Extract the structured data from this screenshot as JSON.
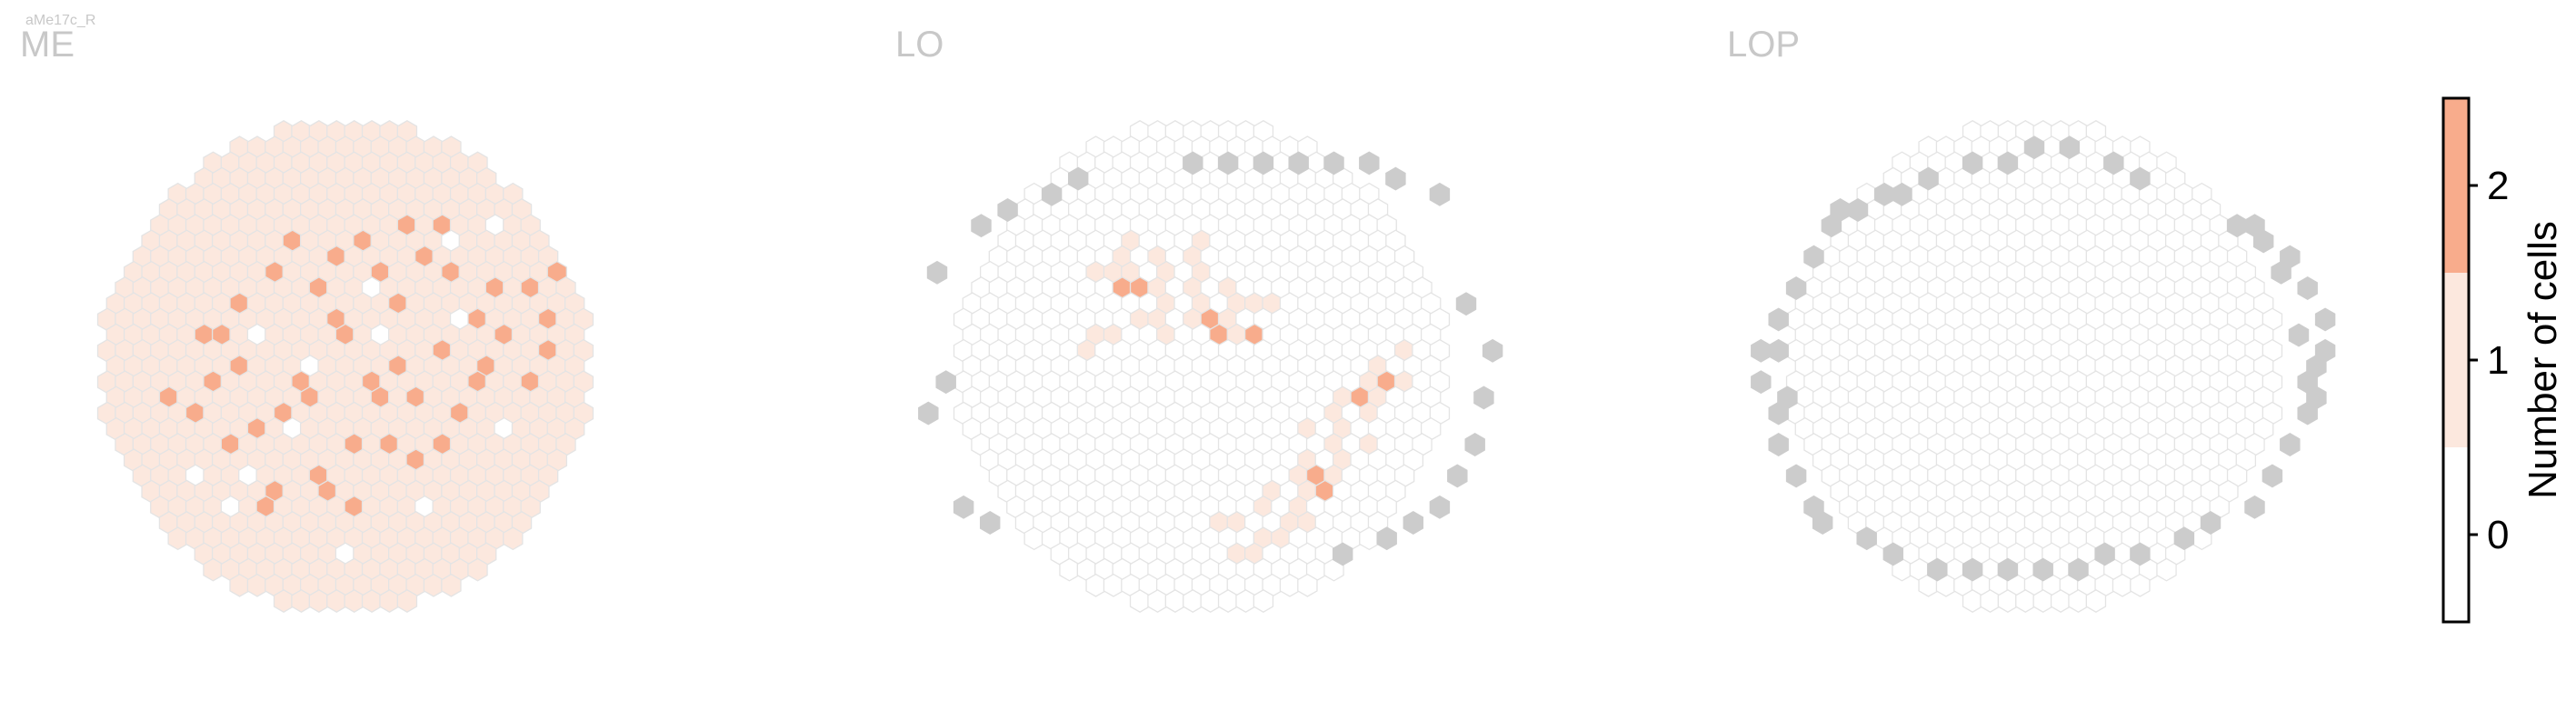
{
  "cell_type_label": "aMe17c_R",
  "colors": {
    "zero": "#ffffff",
    "one": "#fce8de",
    "two": "#f8ac8c",
    "outside": "#cccccc",
    "hex_stroke": "#e4e4e4",
    "title_gray": "#c8c8c8",
    "frame": "#000000"
  },
  "chart_data": {
    "type": "heatmap",
    "description_free": true,
    "panels": [
      {
        "title": "ME",
        "cells_2": [
          [
            -7,
            -2
          ],
          [
            -5,
            4
          ],
          [
            -4,
            -6
          ],
          [
            -3,
            1
          ],
          [
            -2,
            7
          ],
          [
            -1,
            -3
          ],
          [
            0,
            5
          ],
          [
            1,
            -8
          ],
          [
            2,
            2
          ],
          [
            3,
            -4
          ],
          [
            4,
            6
          ],
          [
            5,
            -1
          ],
          [
            6,
            3
          ],
          [
            -6,
            0
          ],
          [
            -2,
            -5
          ],
          [
            1,
            1
          ],
          [
            3,
            0
          ],
          [
            -4,
            3
          ],
          [
            2,
            -6
          ],
          [
            0,
            -2
          ],
          [
            5,
            5
          ],
          [
            -1,
            8
          ],
          [
            -8,
            1
          ],
          [
            7,
            -3
          ],
          [
            4,
            -7
          ],
          [
            -3,
            -8
          ],
          [
            6,
            -6
          ],
          [
            -7,
            5
          ],
          [
            8,
            0
          ],
          [
            -9,
            3
          ],
          [
            9,
            -2
          ],
          [
            0,
            9
          ],
          [
            -5,
            9
          ],
          [
            3,
            -9
          ],
          [
            10,
            -5
          ],
          [
            -10,
            2
          ],
          [
            11,
            -3
          ],
          [
            12,
            -6
          ],
          [
            11,
            -1
          ],
          [
            10,
            1
          ],
          [
            -8,
            -2
          ],
          [
            -6,
            -4
          ],
          [
            4,
            2
          ],
          [
            2,
            5
          ],
          [
            -2,
            2
          ],
          [
            -4,
            8
          ],
          [
            7,
            1
          ],
          [
            8,
            -5
          ],
          [
            5,
            -9
          ],
          [
            -1,
            -7
          ]
        ],
        "cells_0": [
          [
            -3,
            4
          ],
          [
            2,
            -2
          ],
          [
            6,
            -8
          ],
          [
            -7,
            9
          ],
          [
            9,
            4
          ],
          [
            -5,
            -2
          ],
          [
            0,
            12
          ],
          [
            4,
            9
          ],
          [
            -9,
            7
          ],
          [
            8,
            -9
          ],
          [
            1,
            -5
          ],
          [
            -2,
            0
          ],
          [
            6,
            -3
          ],
          [
            -6,
            7
          ]
        ]
      },
      {
        "title": "LO",
        "cells_1": [
          [
            -6,
            -6
          ],
          [
            -5,
            -7
          ],
          [
            -5,
            -6
          ],
          [
            -4,
            -8
          ],
          [
            -4,
            -6
          ],
          [
            -3,
            -7
          ],
          [
            -2,
            -6
          ],
          [
            -1,
            -7
          ],
          [
            0,
            -8
          ],
          [
            0,
            -6
          ],
          [
            -3,
            -5
          ],
          [
            -2,
            -4
          ],
          [
            -1,
            -5
          ],
          [
            1,
            -5
          ],
          [
            -4,
            -3
          ],
          [
            -5,
            -2
          ],
          [
            -6,
            -2
          ],
          [
            -7,
            -1
          ],
          [
            -2,
            -2
          ],
          [
            -1,
            -3
          ],
          [
            1,
            -3
          ],
          [
            2,
            -2
          ],
          [
            3,
            -4
          ],
          [
            2,
            -4
          ],
          [
            4,
            -4
          ],
          [
            6,
            4
          ],
          [
            7,
            3
          ],
          [
            8,
            2
          ],
          [
            9,
            1
          ],
          [
            10,
            0
          ],
          [
            11,
            -1
          ],
          [
            7,
            5
          ],
          [
            8,
            4
          ],
          [
            9,
            3
          ],
          [
            10,
            2
          ],
          [
            6,
            6
          ],
          [
            5,
            7
          ],
          [
            7,
            7
          ],
          [
            8,
            6
          ],
          [
            9,
            5
          ],
          [
            4,
            8
          ],
          [
            3,
            9
          ],
          [
            5,
            9
          ],
          [
            6,
            8
          ],
          [
            2,
            10
          ],
          [
            3,
            11
          ],
          [
            4,
            11
          ],
          [
            5,
            10
          ],
          [
            1,
            10
          ],
          [
            6,
            10
          ],
          [
            2,
            12
          ],
          [
            3,
            12
          ],
          [
            11,
            1
          ],
          [
            -3,
            -3
          ],
          [
            0,
            -4
          ]
        ],
        "cells_2": [
          [
            -5,
            -5
          ],
          [
            -4,
            -5
          ],
          [
            0,
            -3
          ],
          [
            1,
            -2
          ],
          [
            3,
            -2
          ],
          [
            10,
            1
          ],
          [
            9,
            2
          ],
          [
            6,
            7
          ],
          [
            7,
            8
          ]
        ],
        "outside": [
          [
            1,
            -13
          ],
          [
            -1,
            -13
          ],
          [
            3,
            -13
          ],
          [
            5,
            -13
          ],
          [
            7,
            -13
          ],
          [
            9,
            -13
          ],
          [
            11,
            -12
          ],
          [
            13,
            -11
          ],
          [
            -15,
            1
          ],
          [
            -16,
            3
          ],
          [
            -15,
            -6
          ],
          [
            -13,
            -9
          ],
          [
            -11,
            -10
          ],
          [
            -9,
            -11
          ],
          [
            -7,
            -12
          ],
          [
            15,
            -4
          ],
          [
            16,
            -1
          ],
          [
            16,
            2
          ],
          [
            15,
            5
          ],
          [
            14,
            7
          ],
          [
            13,
            9
          ],
          [
            12,
            10
          ],
          [
            10,
            11
          ],
          [
            8,
            12
          ],
          [
            -14,
            9
          ],
          [
            -12,
            10
          ]
        ]
      },
      {
        "title": "LOP",
        "outside": [
          [
            -15,
            -3
          ],
          [
            -16,
            -1
          ],
          [
            -16,
            1
          ],
          [
            -15,
            3
          ],
          [
            -15,
            5
          ],
          [
            -14,
            7
          ],
          [
            -13,
            9
          ],
          [
            -12,
            10
          ],
          [
            -10,
            11
          ],
          [
            -8,
            12
          ],
          [
            -6,
            13
          ],
          [
            -4,
            13
          ],
          [
            -2,
            13
          ],
          [
            0,
            13
          ],
          [
            2,
            13
          ],
          [
            4,
            12
          ],
          [
            6,
            12
          ],
          [
            8,
            11
          ],
          [
            10,
            10
          ],
          [
            12,
            9
          ],
          [
            13,
            7
          ],
          [
            14,
            5
          ],
          [
            15,
            3
          ],
          [
            15,
            1
          ],
          [
            16,
            -1
          ],
          [
            16,
            -3
          ],
          [
            15,
            -5
          ],
          [
            14,
            -7
          ],
          [
            12,
            -9
          ],
          [
            -13,
            -7
          ],
          [
            -12,
            -9
          ],
          [
            -10,
            -10
          ],
          [
            -8,
            -11
          ],
          [
            -6,
            -12
          ],
          [
            -4,
            -13
          ],
          [
            -2,
            -13
          ],
          [
            0,
            -14
          ],
          [
            2,
            -14
          ],
          [
            4,
            -13
          ],
          [
            6,
            -12
          ],
          [
            -14,
            -5
          ],
          [
            -11,
            -10
          ],
          [
            -9,
            -11
          ],
          [
            -14,
            2
          ],
          [
            -15,
            -1
          ],
          [
            16,
            2
          ],
          [
            16,
            0
          ],
          [
            15,
            -2
          ],
          [
            14,
            -6
          ],
          [
            13,
            -8
          ],
          [
            11,
            -9
          ]
        ]
      }
    ],
    "colorbar": {
      "title": "Number of cells",
      "ticks": [
        "0",
        "1",
        "2"
      ],
      "range": [
        -0.5,
        2.5
      ]
    }
  }
}
